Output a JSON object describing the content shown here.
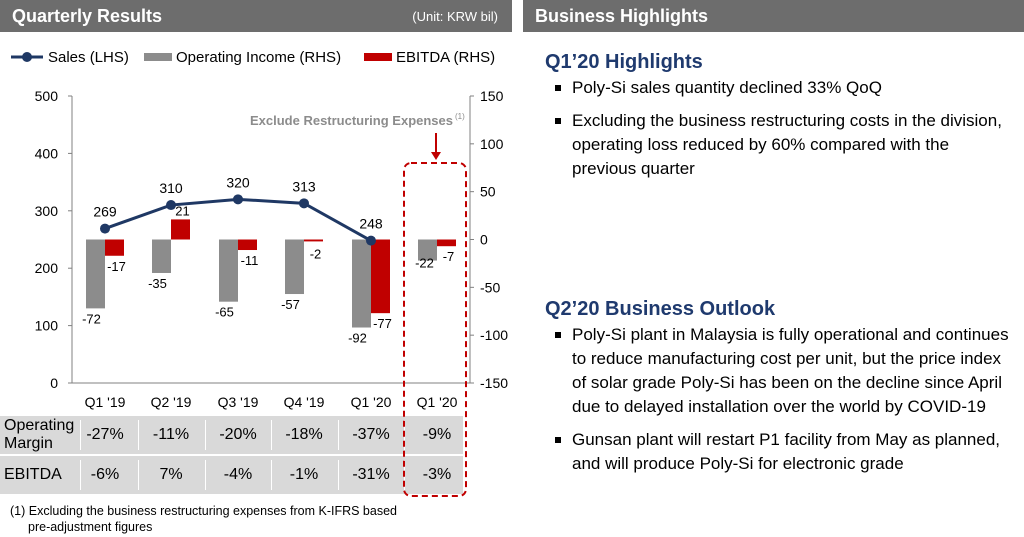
{
  "left_header": {
    "title": "Quarterly Results",
    "unit": "(Unit: KRW bil)"
  },
  "right_header": {
    "title": "Business Highlights"
  },
  "chart_data": {
    "type": "bar+line",
    "categories": [
      "Q1 '19",
      "Q2 '19",
      "Q3 '19",
      "Q4 '19",
      "Q1 '20",
      "Q1 '20"
    ],
    "legend": [
      "Sales (LHS)",
      "Operating Income (RHS)",
      "EBITDA (RHS)"
    ],
    "legend_position": "top-left",
    "series": [
      {
        "name": "Sales (LHS)",
        "type": "line",
        "axis": "left",
        "values": [
          269,
          310,
          320,
          313,
          248,
          null
        ],
        "color": "#1f3864"
      },
      {
        "name": "Operating Income (RHS)",
        "type": "bar",
        "axis": "right",
        "values": [
          -72,
          -35,
          -65,
          -57,
          -92,
          -22
        ],
        "color": "#8c8c8c"
      },
      {
        "name": "EBITDA (RHS)",
        "type": "bar",
        "axis": "right",
        "values": [
          -17,
          21,
          -11,
          -2,
          -77,
          -7
        ],
        "color": "#c00000"
      }
    ],
    "y_left": {
      "min": 0,
      "max": 500,
      "ticks": [
        "0",
        "100",
        "200",
        "300",
        "400",
        "500"
      ]
    },
    "y_right": {
      "min": -150,
      "max": 150,
      "ticks": [
        "150",
        "100",
        "50",
        "0",
        "-50",
        "-100",
        "-150"
      ]
    },
    "annotation": {
      "text": "Exclude Restructuring Expenses",
      "superscript": "(1)",
      "target_category_index": 5
    },
    "grid": false,
    "table": {
      "rows": [
        {
          "label": "Operating Margin",
          "values": [
            "-27%",
            "-11%",
            "-20%",
            "-18%",
            "-37%",
            "-9%"
          ]
        },
        {
          "label": "EBITDA",
          "values": [
            "-6%",
            "7%",
            "-4%",
            "-1%",
            "-31%",
            "-3%"
          ]
        }
      ]
    }
  },
  "footnote": {
    "line1": "(1) Excluding the business restructuring expenses from K-IFRS based",
    "line2": "pre-adjustment figures"
  },
  "highlights": {
    "title": "Q1’20 Highlights",
    "bullets": [
      "Poly-Si sales quantity declined 33% QoQ",
      "Excluding the business restructuring costs in the division, operating loss reduced by 60% compared with the previous quarter"
    ]
  },
  "outlook": {
    "title": "Q2’20 Business Outlook",
    "bullets": [
      "Poly-Si plant in Malaysia is fully operational and continues to reduce manufacturing cost per unit, but the price index of solar grade Poly-Si has been on the decline since April due to delayed installation over the world by COVID-19",
      "Gunsan plant will restart P1 facility from May as planned, and will produce Poly-Si for electronic grade"
    ]
  }
}
